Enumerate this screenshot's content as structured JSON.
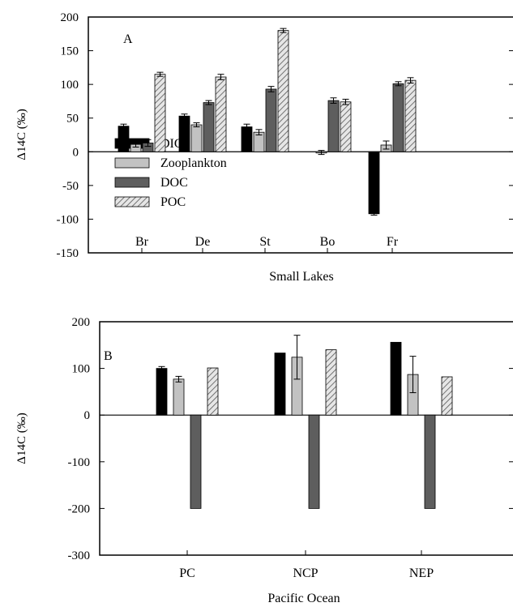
{
  "chart_data": [
    {
      "type": "bar",
      "panel_label": "A",
      "xlabel": "Small Lakes",
      "ylabel": "Δ14C (‰)",
      "ylim": [
        -150,
        200
      ],
      "yticks": [
        200,
        150,
        100,
        50,
        0,
        -50,
        -100,
        -150
      ],
      "categories": [
        "Br",
        "De",
        "St",
        "Bo",
        "Fr"
      ],
      "legend": {
        "placement": "lower-left"
      },
      "series": [
        {
          "name": "DIC",
          "style": "black",
          "values": [
            38,
            53,
            37,
            null,
            -92
          ],
          "errors": [
            3,
            3,
            4,
            null,
            2
          ]
        },
        {
          "name": "Zooplankton",
          "style": "lightgray",
          "values": [
            11,
            40,
            29,
            -1,
            10
          ],
          "errors": [
            4,
            3,
            4,
            3,
            6
          ]
        },
        {
          "name": "DOC",
          "style": "darkgray",
          "values": [
            13,
            73,
            93,
            76,
            101
          ],
          "errors": [
            5,
            3,
            4,
            4,
            3
          ]
        },
        {
          "name": "POC",
          "style": "hatched",
          "values": [
            115,
            111,
            180,
            74,
            106
          ],
          "errors": [
            3,
            4,
            3,
            4,
            4
          ]
        }
      ]
    },
    {
      "type": "bar",
      "panel_label": "B",
      "xlabel": "Pacific Ocean",
      "ylabel": "Δ14C (‰)",
      "ylim": [
        -300,
        200
      ],
      "yticks": [
        200,
        100,
        0,
        -100,
        -200,
        -300
      ],
      "categories": [
        "PC",
        "NCP",
        "NEP"
      ],
      "series": [
        {
          "name": "DIC",
          "style": "black",
          "values": [
            100,
            133,
            156
          ],
          "errors": [
            4,
            0,
            0
          ]
        },
        {
          "name": "Zooplankton",
          "style": "lightgray",
          "values": [
            77,
            124,
            87
          ],
          "errors": [
            6,
            47,
            39
          ]
        },
        {
          "name": "DOC",
          "style": "darkgray",
          "values": [
            -200,
            -200,
            -200
          ],
          "errors": [
            0,
            0,
            0
          ]
        },
        {
          "name": "POC",
          "style": "hatched",
          "values": [
            101,
            140,
            82
          ],
          "errors": [
            0,
            0,
            0
          ]
        }
      ]
    }
  ]
}
